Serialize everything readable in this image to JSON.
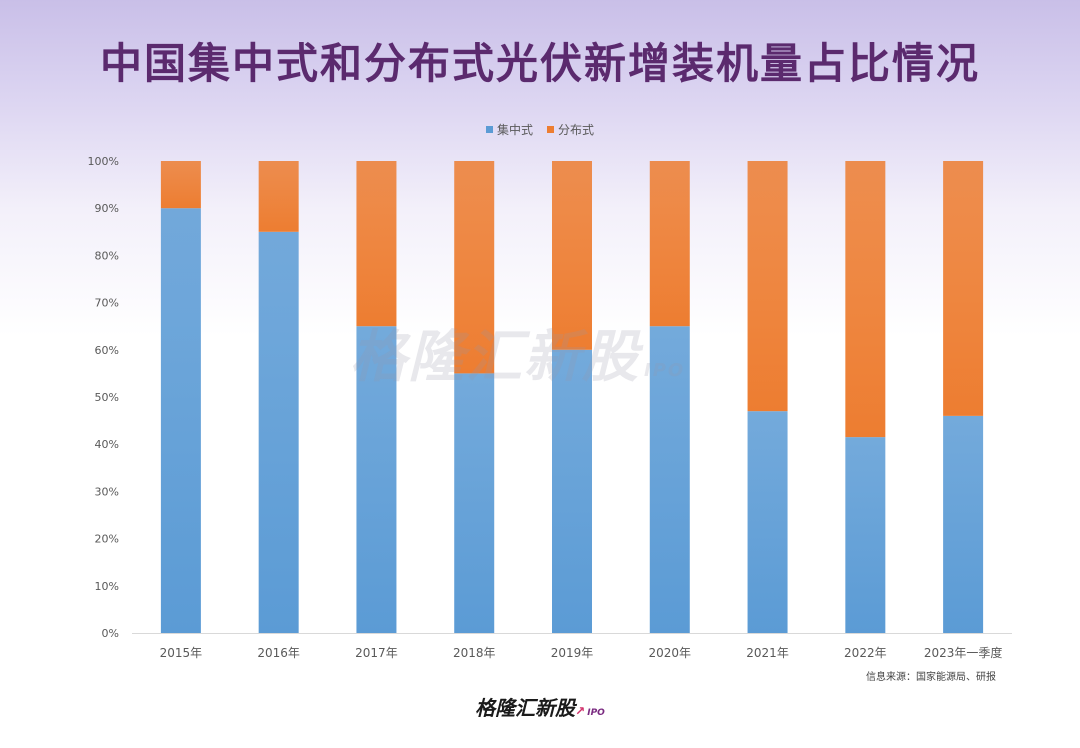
{
  "title": "中国集中式和分布式光伏新增装机量占比情况",
  "source": "信息来源：国家能源局、研报",
  "watermark": "格隆汇新股",
  "watermark_tag": "IPO",
  "logo": "格隆汇新股",
  "logo_tag": "IPO",
  "colors": {
    "centralized": "#5b9bd5",
    "distributed": "#ed7d31",
    "title": "#5b2a6e"
  },
  "chart_data": {
    "type": "bar",
    "stacked": true,
    "percent_stacked": true,
    "title": "中国集中式和分布式光伏新增装机量占比情况",
    "categories": [
      "2015年",
      "2016年",
      "2017年",
      "2018年",
      "2019年",
      "2020年",
      "2021年",
      "2022年",
      "2023年一季度"
    ],
    "series": [
      {
        "name": "集中式",
        "values": [
          90,
          85,
          65,
          55,
          60,
          65,
          47,
          41.5,
          46
        ]
      },
      {
        "name": "分布式",
        "values": [
          10,
          15,
          35,
          45,
          40,
          35,
          53,
          58.5,
          54
        ]
      }
    ],
    "ylim": [
      0,
      100
    ],
    "yticks": [
      "0%",
      "10%",
      "20%",
      "30%",
      "40%",
      "50%",
      "60%",
      "70%",
      "80%",
      "90%",
      "100%"
    ],
    "legend_position": "top",
    "grid": false
  }
}
